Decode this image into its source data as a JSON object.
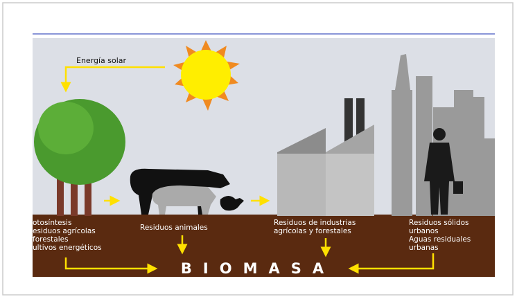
{
  "energy_label": "Energía solar",
  "sources": [
    {
      "lines": [
        "otosíntesis",
        "esiduos agrícolas",
        " forestales",
        "ultivos energéticos"
      ]
    },
    {
      "lines": [
        "Residuos animales"
      ]
    },
    {
      "lines": [
        "Residuos de industrias",
        "agrícolas y forestales"
      ]
    },
    {
      "lines": [
        "Residuos sólidos",
        "urbanos",
        "Aguas residuales",
        "urbanas"
      ]
    }
  ],
  "result": "BIOMASA"
}
